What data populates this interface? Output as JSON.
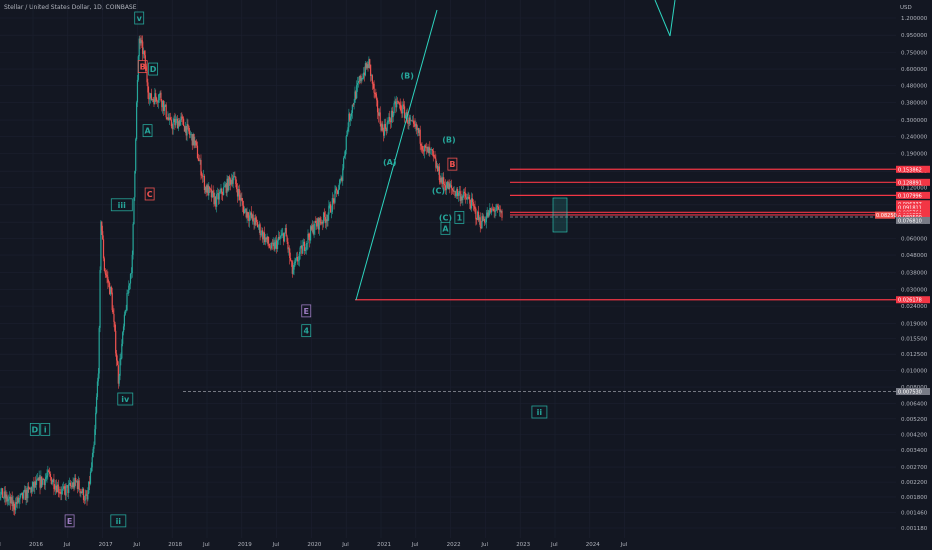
{
  "header": {
    "symbol_title": "Stellar / United States Dollar, 1D, COINBASE"
  },
  "currency_label": "USD",
  "colors": {
    "background": "#131722",
    "up": "#26a69a",
    "down": "#ef5350",
    "accent_line": "#2dd4bf",
    "resistance": "#f23645",
    "text": "#b2b5be"
  },
  "chart_data": {
    "type": "candlestick",
    "scale": "log",
    "y_ticks": [
      "1.200000",
      "0.950000",
      "0.750000",
      "0.600000",
      "0.480000",
      "0.380000",
      "0.300000",
      "0.240000",
      "0.190000",
      "0.150000",
      "0.120000",
      "0.095000",
      "0.075000",
      "0.060000",
      "0.048000",
      "0.038000",
      "0.030000",
      "0.024000",
      "0.019000",
      "0.015500",
      "0.012500",
      "0.010000",
      "0.008000",
      "0.006400",
      "0.005200",
      "0.004200",
      "0.003400",
      "0.002700",
      "0.002200",
      "0.001800",
      "0.001460",
      "0.001180"
    ],
    "x_ticks": [
      "Jul",
      "2016",
      "Jul",
      "2017",
      "Jul",
      "2018",
      "Jul",
      "2019",
      "Jul",
      "2020",
      "Jul",
      "2021",
      "Jul",
      "2022",
      "Jul",
      "2023",
      "Jul",
      "2024",
      "Jul"
    ],
    "price_badges": [
      {
        "value": "0.153862",
        "color": "#f23645"
      },
      {
        "value": "0.128891",
        "color": "#f23645"
      },
      {
        "value": "0.107996",
        "color": "#f23645"
      },
      {
        "value": "0.096337",
        "color": "#f23645"
      },
      {
        "value": "0.091811",
        "color": "#f23645"
      },
      {
        "value": "0.085764",
        "color": "#f23645"
      },
      {
        "value": "0.082775",
        "color": "#f23645"
      },
      {
        "value": "0.080500",
        "color": "#f23645"
      },
      {
        "value": "0.076810",
        "color": "#787b86"
      },
      {
        "value": "0.026178",
        "color": "#f23645"
      },
      {
        "value": "0.007530",
        "color": "#787b86"
      }
    ],
    "current_price": "0.08250",
    "levels": [
      {
        "price": "0.153862",
        "style": "solid"
      },
      {
        "price": "0.128891",
        "style": "solid"
      },
      {
        "price": "0.107996",
        "style": "solid"
      },
      {
        "price": "0.085764",
        "style": "solid"
      },
      {
        "price": "0.082775",
        "style": "solid"
      },
      {
        "price": "0.080500",
        "style": "dashed"
      },
      {
        "price": "0.026178",
        "style": "solid"
      },
      {
        "price": "0.007530",
        "style": "dashed"
      }
    ],
    "wave_labels": [
      {
        "text": "v",
        "date": "2018.0",
        "price": 1.2,
        "color": "#26a69a",
        "box": true
      },
      {
        "text": "B",
        "date": "2018.05",
        "price": 0.62,
        "color": "#ef5350",
        "box": true
      },
      {
        "text": "D",
        "date": "2018.2",
        "price": 0.6,
        "color": "#26a69a",
        "box": true
      },
      {
        "text": "A",
        "date": "2018.12",
        "price": 0.26,
        "color": "#26a69a",
        "box": true
      },
      {
        "text": "C",
        "date": "2018.15",
        "price": 0.11,
        "color": "#ef5350",
        "box": true
      },
      {
        "text": "iii",
        "date": "2017.75",
        "price": 0.095,
        "color": "#26a69a",
        "box": true
      },
      {
        "text": "iv",
        "date": "2017.8",
        "price": 0.0068,
        "color": "#26a69a",
        "box": true
      },
      {
        "text": "D",
        "date": "2016.5",
        "price": 0.0045,
        "color": "#26a69a",
        "box": true
      },
      {
        "text": "i",
        "date": "2016.65",
        "price": 0.0045,
        "color": "#26a69a",
        "box": true
      },
      {
        "text": "E",
        "date": "2017.0",
        "price": 0.0013,
        "color": "#9c7bc0",
        "box": true
      },
      {
        "text": "ii",
        "date": "2017.7",
        "price": 0.0013,
        "color": "#26a69a",
        "box": true
      },
      {
        "text": "C",
        "date": "2015.5",
        "price": 0.00115,
        "color": "#ef5350",
        "box": true
      },
      {
        "text": "E",
        "date": "2020.4",
        "price": 0.0225,
        "color": "#9c7bc0",
        "box": true
      },
      {
        "text": "4",
        "date": "2020.4",
        "price": 0.0172,
        "color": "#26a69a",
        "box": true
      },
      {
        "text": "(A)",
        "date": "2021.6",
        "price": 0.17,
        "color": "#26a69a",
        "box": false
      },
      {
        "text": "(B)",
        "date": "2021.85",
        "price": 0.55,
        "color": "#26a69a",
        "box": false
      },
      {
        "text": "(B)",
        "date": "2022.45",
        "price": 0.23,
        "color": "#26a69a",
        "box": false
      },
      {
        "text": "B",
        "date": "2022.5",
        "price": 0.165,
        "color": "#ef5350",
        "box": true
      },
      {
        "text": "(C)",
        "date": "2022.3",
        "price": 0.115,
        "color": "#26a69a",
        "box": false
      },
      {
        "text": "(C)",
        "date": "2022.4",
        "price": 0.08,
        "color": "#26a69a",
        "box": false
      },
      {
        "text": "1",
        "date": "2022.6",
        "price": 0.08,
        "color": "#26a69a",
        "box": true
      },
      {
        "text": "A",
        "date": "2022.4",
        "price": 0.069,
        "color": "#26a69a",
        "box": true
      },
      {
        "text": "ii",
        "date": "2023.75",
        "price": 0.0057,
        "color": "#26a69a",
        "box": true
      }
    ]
  }
}
